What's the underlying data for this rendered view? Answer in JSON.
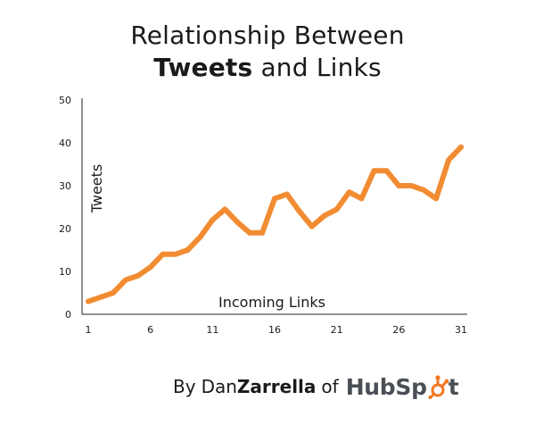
{
  "header": {
    "title_line1": "Relationship Between",
    "title_bold": "Tweets",
    "title_rest": "and Links"
  },
  "footer": {
    "by": "By",
    "first": "Dan",
    "last": "Zarrella",
    "of": "of",
    "brand_a": "HubSp",
    "brand_b": "t",
    "brand_logo_icon": "hubspot-sprocket-icon"
  },
  "colors": {
    "line": "#f28c32",
    "axis": "#222222",
    "brand_orange": "#f57722",
    "brand_gray": "#4a4f55"
  },
  "chart_data": {
    "type": "line",
    "title": "Relationship Between Tweets and Links",
    "xlabel": "Incoming Links",
    "ylabel": "Tweets",
    "xlim": [
      1,
      31
    ],
    "ylim": [
      0,
      50
    ],
    "x_ticks": [
      1,
      6,
      11,
      16,
      21,
      26,
      31
    ],
    "y_ticks": [
      0,
      10,
      20,
      30,
      40,
      50
    ],
    "grid": false,
    "legend": "none",
    "series": [
      {
        "x": [
          1,
          2,
          3,
          4,
          5,
          6,
          7,
          8,
          9,
          10,
          11,
          12,
          13,
          14,
          15,
          16,
          17,
          18,
          19,
          20,
          21,
          22,
          23,
          24,
          25,
          26,
          27,
          28,
          29,
          30,
          31
        ],
        "values": [
          3,
          4,
          5,
          8,
          9,
          11,
          14,
          14,
          15,
          18,
          22,
          24.5,
          21.5,
          19,
          19,
          27,
          28,
          24,
          20.5,
          23,
          24.5,
          28.5,
          27,
          33.5,
          33.5,
          30,
          30,
          29,
          27,
          36,
          39
        ]
      }
    ]
  }
}
